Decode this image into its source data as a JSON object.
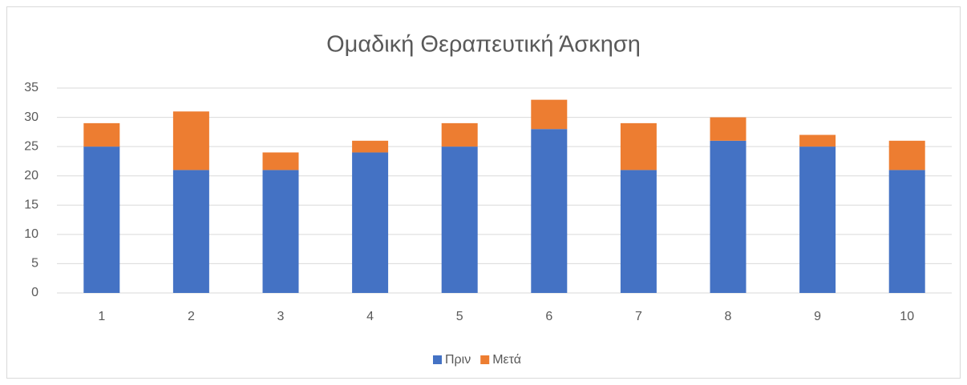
{
  "chart_data": {
    "type": "stacked_bar",
    "title": "Ομαδική Θεραπευτική Άσκηση",
    "categories": [
      "1",
      "2",
      "3",
      "4",
      "5",
      "6",
      "7",
      "8",
      "9",
      "10"
    ],
    "series": [
      {
        "name": "Πριν",
        "color": "#4472c4",
        "values": [
          25,
          21,
          21,
          24,
          25,
          28,
          21,
          26,
          25,
          21
        ]
      },
      {
        "name": "Μετά",
        "color": "#ed7d31",
        "values": [
          4,
          10,
          3,
          2,
          4,
          5,
          8,
          4,
          2,
          5
        ]
      }
    ],
    "ylim": [
      0,
      35
    ],
    "yticks": [
      0,
      5,
      10,
      15,
      20,
      25,
      30,
      35
    ],
    "grid": true,
    "legend": "bottom"
  }
}
